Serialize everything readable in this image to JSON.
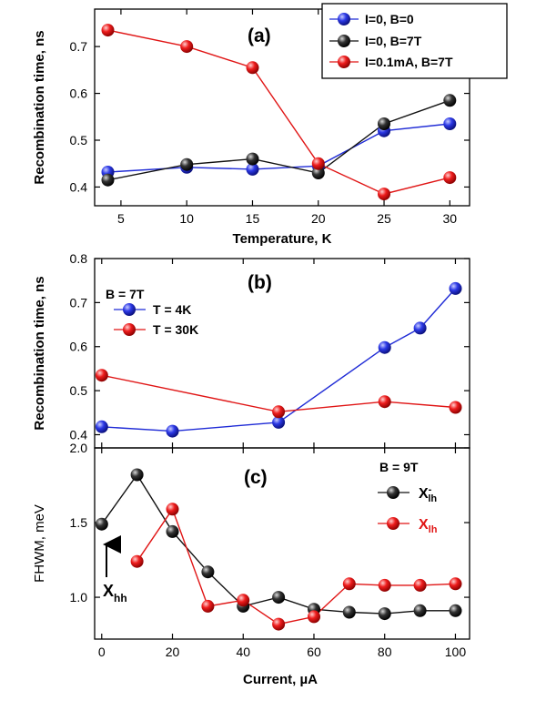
{
  "chart_data": [
    {
      "type": "line",
      "panel_label": "(a)",
      "xlabel": "Temperature, K",
      "ylabel": "Recombination time, ns",
      "xlim": [
        3,
        31.5
      ],
      "ylim": [
        0.36,
        0.78
      ],
      "xticks": [
        5,
        10,
        15,
        20,
        25,
        30
      ],
      "yticks": [
        0.4,
        0.5,
        0.6,
        0.7
      ],
      "ytick_labels": [
        "0.4",
        "0.5",
        "0.6",
        "0.7"
      ],
      "legend": "top-right, boxed",
      "series": [
        {
          "name": "I=0, B=0",
          "color": "#1f2bd6",
          "x": [
            4,
            10,
            15,
            20,
            25,
            30
          ],
          "y": [
            0.432,
            0.442,
            0.438,
            0.445,
            0.52,
            0.535
          ]
        },
        {
          "name": "I=0, B=7T",
          "color": "#111111",
          "x": [
            4,
            10,
            15,
            20,
            25,
            30
          ],
          "y": [
            0.415,
            0.448,
            0.46,
            0.43,
            0.535,
            0.585
          ]
        },
        {
          "name": "I=0.1mA, B=7T",
          "color": "#e01515",
          "x": [
            4,
            10,
            15,
            20,
            25,
            30
          ],
          "y": [
            0.735,
            0.7,
            0.655,
            0.45,
            0.385,
            0.42
          ]
        }
      ]
    },
    {
      "type": "line",
      "panel_label": "(b)",
      "annotation": "B = 7T",
      "xlabel": "",
      "ylabel": "Recombination time, ns",
      "xlim": [
        -2,
        104
      ],
      "ylim": [
        0.37,
        0.8
      ],
      "yticks": [
        0.4,
        0.5,
        0.6,
        0.7,
        0.8
      ],
      "ytick_labels": [
        "0.4",
        "0.5",
        "0.6",
        "0.7",
        "0.8"
      ],
      "legend": "upper-left",
      "series": [
        {
          "name": "T = 4K",
          "color": "#1f2bd6",
          "x": [
            0,
            20,
            50,
            80,
            90,
            100
          ],
          "y": [
            0.418,
            0.408,
            0.428,
            0.598,
            0.642,
            0.732
          ]
        },
        {
          "name": "T = 30K",
          "color": "#e01515",
          "x": [
            0,
            50,
            80,
            100
          ],
          "y": [
            0.535,
            0.452,
            0.475,
            0.462
          ]
        }
      ]
    },
    {
      "type": "line",
      "panel_label": "(c)",
      "annotation": "B = 9T",
      "arrow_label": {
        "main": "X",
        "sub": "hh"
      },
      "xlabel": "Current, µA",
      "ylabel": "FHWM, meV",
      "xlim": [
        -2,
        104
      ],
      "ylim": [
        0.72,
        2.0
      ],
      "xticks": [
        0,
        20,
        40,
        60,
        80,
        100
      ],
      "yticks": [
        1.0,
        1.5,
        2.0
      ],
      "ytick_labels": [
        "1.0",
        "1.5",
        "2.0"
      ],
      "legend": "right",
      "series": [
        {
          "name_main": "X",
          "name_sub": "lh",
          "name_sup": "-",
          "color": "#111111",
          "x": [
            0,
            10,
            20,
            30,
            40,
            50,
            60,
            70,
            80,
            90,
            100
          ],
          "y": [
            1.49,
            1.82,
            1.44,
            1.17,
            0.94,
            1.0,
            0.92,
            0.9,
            0.89,
            0.91,
            0.91
          ]
        },
        {
          "name_main": "X",
          "name_sub": "lh",
          "color": "#e01515",
          "x": [
            10,
            20,
            30,
            40,
            50,
            60,
            70,
            80,
            90,
            100
          ],
          "y": [
            1.24,
            1.59,
            0.94,
            0.98,
            0.82,
            0.87,
            1.09,
            1.08,
            1.08,
            1.09
          ]
        }
      ]
    }
  ]
}
